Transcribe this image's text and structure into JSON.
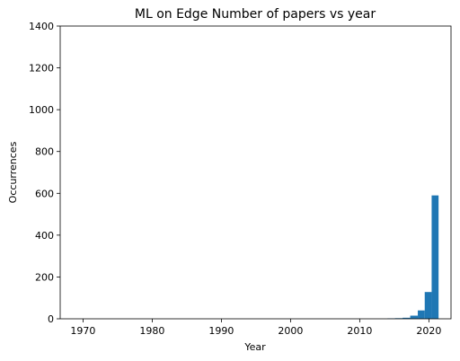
{
  "chart_data": {
    "type": "bar",
    "title": "ML on Edge Number of papers vs year",
    "xlabel": "Year",
    "ylabel": "Occurrences",
    "xlim": [
      1966.7,
      2023.2
    ],
    "ylim": [
      0,
      1400
    ],
    "xticks": [
      1970,
      1980,
      1990,
      2000,
      2010,
      2020
    ],
    "yticks": [
      0,
      200,
      400,
      600,
      800,
      1000,
      1200,
      1400
    ],
    "grid": false,
    "bar_color": "#1f77b4",
    "bins": [
      {
        "x0": 2014.0,
        "x1": 2015.1,
        "value": 2
      },
      {
        "x0": 2015.1,
        "x1": 2016.2,
        "value": 3
      },
      {
        "x0": 2016.2,
        "x1": 2017.3,
        "value": 5
      },
      {
        "x0": 2017.3,
        "x1": 2018.4,
        "value": 15
      },
      {
        "x0": 2018.4,
        "x1": 2019.4,
        "value": 40
      },
      {
        "x0": 2019.4,
        "x1": 2020.4,
        "value": 128
      },
      {
        "x0": 2020.4,
        "x1": 2021.4,
        "value": 590
      }
    ]
  }
}
